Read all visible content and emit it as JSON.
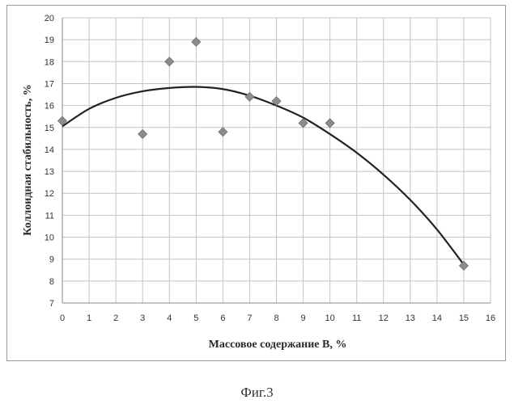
{
  "chart_data": {
    "type": "scatter",
    "xlabel": "Массовое содержание  В, %",
    "ylabel": "Коллоидная стабильность, %",
    "xlim": [
      0,
      16
    ],
    "ylim": [
      7,
      20
    ],
    "x_ticks": [
      0,
      1,
      2,
      3,
      4,
      5,
      6,
      7,
      8,
      9,
      10,
      11,
      12,
      13,
      14,
      15,
      16
    ],
    "y_ticks": [
      7,
      8,
      9,
      10,
      11,
      12,
      13,
      14,
      15,
      16,
      17,
      18,
      19,
      20
    ],
    "grid": true,
    "legend": "none",
    "marker": "diamond",
    "marker_color": "#8c8c8c",
    "trendline_color": "#222222",
    "points": [
      {
        "x": 0,
        "y": 15.3
      },
      {
        "x": 3,
        "y": 14.7
      },
      {
        "x": 4,
        "y": 18.0
      },
      {
        "x": 5,
        "y": 18.9
      },
      {
        "x": 6,
        "y": 14.8
      },
      {
        "x": 7,
        "y": 16.4
      },
      {
        "x": 8,
        "y": 16.2
      },
      {
        "x": 9,
        "y": 15.2
      },
      {
        "x": 10,
        "y": 15.2
      },
      {
        "x": 15,
        "y": 8.7
      }
    ],
    "trendline": {
      "type": "polynomial-2",
      "x": [
        0,
        1,
        2,
        3,
        4,
        5,
        6,
        7,
        8,
        9,
        10,
        11,
        12,
        13,
        14,
        15
      ],
      "y": [
        15.05,
        15.85,
        16.35,
        16.65,
        16.8,
        16.85,
        16.75,
        16.45,
        16.0,
        15.45,
        14.7,
        13.85,
        12.85,
        11.7,
        10.35,
        8.75
      ]
    }
  },
  "caption": "Фиг.3"
}
